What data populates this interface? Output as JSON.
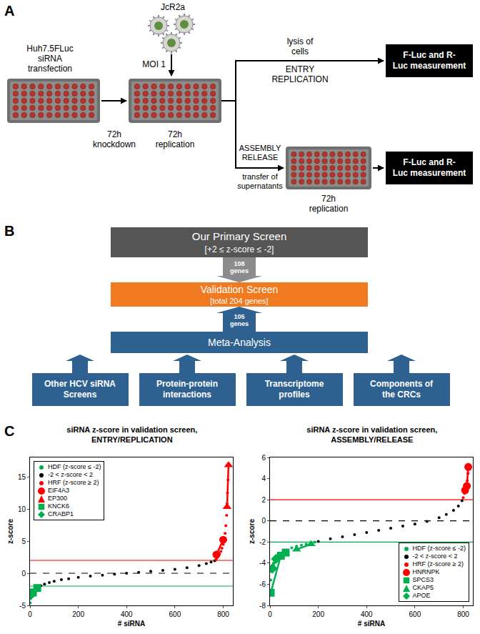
{
  "panel_a": {
    "label": "A",
    "cell_line": [
      "Huh7.5FLuc",
      "siRNA",
      "transfection"
    ],
    "virus": "JcR2a",
    "moi": "MOI 1",
    "knockdown": [
      "72h",
      "knockdown"
    ],
    "replication": [
      "72h",
      "replication"
    ],
    "branch_top": {
      "above": [
        "lysis of",
        "cells"
      ],
      "below": [
        "ENTRY",
        "REPLICATION"
      ],
      "box": [
        "F-Luc and R-",
        "Luc measurement"
      ]
    },
    "branch_bottom": {
      "above": [
        "ASSEMBLY",
        "RELEASE"
      ],
      "below": [
        "transfer of",
        "supernatants"
      ],
      "replication": [
        "72h",
        "replication"
      ],
      "box": [
        "F-Luc and R-",
        "Luc measurement"
      ]
    }
  },
  "panel_b": {
    "label": "B",
    "primary": {
      "title": "Our Primary Screen",
      "subtitle": "[+2 ≤ z-score ≤ -2]"
    },
    "arrow_down": [
      "108",
      "genes"
    ],
    "validation": {
      "title": "Validation Screen",
      "subtitle": "[total 204 genes]"
    },
    "arrow_up": [
      "105",
      "genes"
    ],
    "meta": "Meta-Analysis",
    "sources": [
      [
        "Other HCV siRNA",
        "Screens"
      ],
      [
        "Protein-protein",
        "interactions"
      ],
      [
        "Transcriptome",
        "profiles"
      ],
      [
        "Components of",
        "the CRCs"
      ]
    ]
  },
  "panel_c_label": "C",
  "chart_data": [
    {
      "type": "scatter",
      "title": [
        "siRNA z-score in validation screen,",
        "ENTRY/REPLICATION"
      ],
      "x_label": "# siRNA",
      "y_label": "z-score",
      "xlim": [
        0,
        840
      ],
      "xticks": [
        0,
        200,
        400,
        600,
        800
      ],
      "ylim": [
        -5,
        18
      ],
      "yticks": [
        -5,
        0,
        5,
        10,
        15
      ],
      "legend": "upper left",
      "reference_lines": [
        {
          "value": 2,
          "color": "#ff0000",
          "line_style": "solid"
        },
        {
          "value": -2,
          "color": "#00b050",
          "line_style": "solid"
        },
        {
          "value": 0,
          "color": "#000000",
          "line_style": "dash"
        }
      ],
      "series": [
        {
          "name": "HDF (z-score ≤ -2)",
          "color": "#00b050",
          "marker": "circle",
          "x": [
            1,
            3,
            5,
            8,
            11,
            15,
            19,
            24,
            29,
            34,
            39
          ],
          "values": [
            -4.6,
            -3.9,
            -3.5,
            -3.2,
            -3.0,
            -2.8,
            -2.6,
            -2.4,
            -2.3,
            -2.15,
            -2.05
          ]
        },
        {
          "name": "-2 < z-score < 2",
          "color": "#000000",
          "marker": "circle",
          "x": [
            45,
            60,
            80,
            100,
            130,
            160,
            200,
            250,
            300,
            350,
            400,
            450,
            500,
            550,
            600,
            650,
            700,
            730,
            750,
            765
          ],
          "values": [
            -1.95,
            -1.7,
            -1.45,
            -1.25,
            -1.0,
            -0.85,
            -0.65,
            -0.45,
            -0.3,
            -0.15,
            0.0,
            0.15,
            0.3,
            0.45,
            0.62,
            0.85,
            1.2,
            1.5,
            1.75,
            1.95
          ]
        },
        {
          "name": "HRF (z-score ≥ 2)",
          "color": "#ff0000",
          "marker": "circle",
          "x": [
            770,
            775,
            780,
            785,
            790,
            795,
            800,
            804,
            808,
            811,
            814,
            816,
            818,
            820,
            822
          ],
          "values": [
            2.1,
            2.4,
            2.7,
            3.0,
            3.4,
            3.9,
            4.5,
            5.3,
            6.2,
            7.4,
            9.0,
            10.8,
            12.5,
            14.5,
            16.8
          ]
        },
        {
          "name": "EIF4A3",
          "color": "#ff0000",
          "marker": "circle",
          "line_style": "solid",
          "x": [
            772,
            800
          ],
          "values": [
            2.9,
            5.2
          ]
        },
        {
          "name": "EP300",
          "color": "#ff0000",
          "marker": "triangle",
          "line_style": "solid",
          "x": [
            816,
            822
          ],
          "values": [
            10.3,
            16.8
          ]
        },
        {
          "name": "KNCK6",
          "color": "#00b050",
          "marker": "square",
          "line_style": "solid",
          "x": [
            12,
            30
          ],
          "values": [
            -3.0,
            -2.3
          ]
        },
        {
          "name": "CRABP1",
          "color": "#00b050",
          "marker": "diamond",
          "line_style": "solid",
          "x": [
            3,
            8
          ],
          "values": [
            -3.4,
            -3.1
          ]
        }
      ]
    },
    {
      "type": "scatter",
      "title": [
        "siRNA z-score in validation screen,",
        "ASSEMBLY/RELEASE"
      ],
      "x_label": "# siRNA",
      "y_label": "z-score",
      "xlim": [
        0,
        840
      ],
      "xticks": [
        0,
        200,
        400,
        600,
        800
      ],
      "ylim": [
        -8,
        6
      ],
      "yticks": [
        -8,
        -6,
        -4,
        -2,
        0,
        2,
        4,
        6
      ],
      "legend": "lower right",
      "reference_lines": [
        {
          "value": 2,
          "color": "#ff0000",
          "line_style": "solid"
        },
        {
          "value": -2,
          "color": "#00b050",
          "line_style": "solid"
        },
        {
          "value": 0,
          "color": "#000000",
          "line_style": "dash"
        }
      ],
      "series": [
        {
          "name": "HDF (z-score ≤ -2)",
          "color": "#00b050",
          "marker": "circle",
          "x": [
            1,
            3,
            6,
            10,
            15,
            22,
            30,
            40,
            55,
            70,
            90,
            110,
            130,
            150,
            170,
            185
          ],
          "values": [
            -6.9,
            -5.6,
            -4.8,
            -4.4,
            -4.0,
            -3.7,
            -3.45,
            -3.2,
            -2.95,
            -2.75,
            -2.55,
            -2.4,
            -2.3,
            -2.2,
            -2.1,
            -2.02
          ]
        },
        {
          "name": "-2 < z-score < 2",
          "color": "#000000",
          "marker": "circle",
          "x": [
            200,
            250,
            300,
            350,
            400,
            450,
            500,
            550,
            600,
            650,
            700,
            730,
            760,
            780,
            795
          ],
          "values": [
            -1.95,
            -1.7,
            -1.5,
            -1.3,
            -1.1,
            -0.9,
            -0.7,
            -0.5,
            -0.3,
            -0.05,
            0.3,
            0.6,
            1.0,
            1.4,
            1.9
          ]
        },
        {
          "name": "HRF (z-score ≥ 2)",
          "color": "#ff0000",
          "marker": "circle",
          "x": [
            800,
            805,
            810,
            814,
            817,
            820,
            822
          ],
          "values": [
            2.2,
            2.6,
            3.0,
            3.3,
            3.8,
            4.5,
            5.3
          ]
        },
        {
          "name": "HNRNPK",
          "color": "#ff0000",
          "marker": "circle",
          "line_style": "solid",
          "x": [
            808,
            815,
            821
          ],
          "values": [
            2.9,
            3.3,
            5.1
          ]
        },
        {
          "name": "SPCS3",
          "color": "#00b050",
          "marker": "square",
          "line_style": "solid",
          "x": [
            3,
            45,
            65
          ],
          "values": [
            -6.8,
            -3.3,
            -3.0
          ]
        },
        {
          "name": "CKAP5",
          "color": "#00b050",
          "marker": "triangle",
          "line_style": "solid",
          "x": [
            110,
            170
          ],
          "values": [
            -2.7,
            -2.2
          ]
        },
        {
          "name": "APOE",
          "color": "#00b050",
          "marker": "diamond",
          "line_style": "solid",
          "x": [
            10,
            25
          ],
          "values": [
            -4.5,
            -3.6
          ]
        }
      ]
    }
  ]
}
